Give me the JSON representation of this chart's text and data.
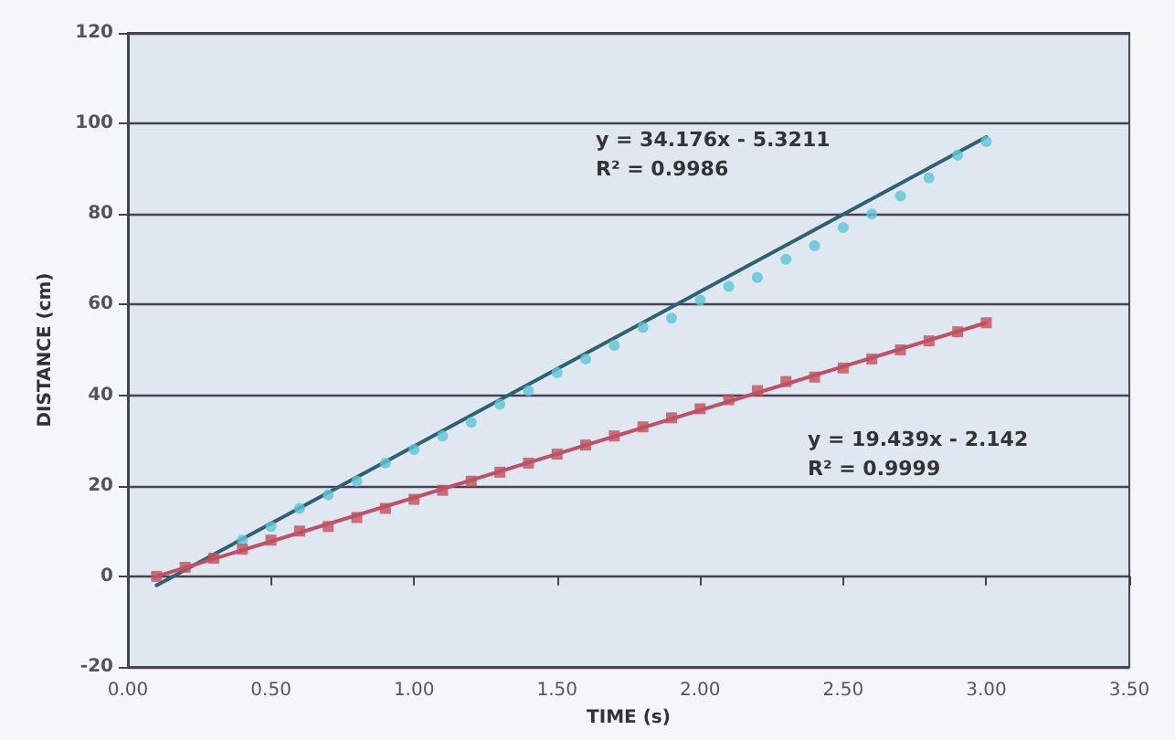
{
  "chart_data": {
    "type": "scatter",
    "xlabel": "TIME (s)",
    "ylabel": "DISTANCE (cm)",
    "xlim": [
      0,
      3.5
    ],
    "xticks": [
      {
        "value": 0,
        "label": "0.00"
      },
      {
        "value": 0.5,
        "label": "0.50"
      },
      {
        "value": 1,
        "label": "1.00"
      },
      {
        "value": 1.5,
        "label": "1.50"
      },
      {
        "value": 2,
        "label": "2.00"
      },
      {
        "value": 2.5,
        "label": "2.50"
      },
      {
        "value": 3,
        "label": "3.00"
      },
      {
        "value": 3.5,
        "label": "3.50"
      }
    ],
    "ylim": [
      -20,
      120
    ],
    "yticks": [
      -20,
      0,
      20,
      40,
      60,
      80,
      100,
      120
    ],
    "grid": "y",
    "x": [
      0.1,
      0.2,
      0.3,
      0.4,
      0.5,
      0.6,
      0.7,
      0.8,
      0.9,
      1.0,
      1.1,
      1.2,
      1.3,
      1.4,
      1.5,
      1.6,
      1.7,
      1.8,
      1.9,
      2.0,
      2.1,
      2.2,
      2.3,
      2.4,
      2.5,
      2.6,
      2.7,
      2.8,
      2.9,
      3.0
    ],
    "series": [
      {
        "marker": "circle",
        "color": "#5cc6d6",
        "values": [
          null,
          null,
          null,
          8,
          11,
          15,
          18,
          21,
          25,
          28,
          31,
          34,
          38,
          41,
          45,
          48,
          51,
          55,
          57,
          61,
          64,
          66,
          70,
          73,
          77,
          80,
          84,
          88,
          93,
          96
        ]
      },
      {
        "marker": "square",
        "color": "#c2505e",
        "values": [
          0,
          2,
          4,
          6,
          8,
          10,
          11,
          13,
          15,
          17,
          19,
          21,
          23,
          25,
          27,
          29,
          31,
          33,
          35,
          37,
          39,
          41,
          43,
          44,
          46,
          48,
          50,
          52,
          54,
          56
        ]
      },
      {
        "type": "line",
        "marker": "none",
        "line_style": "solid",
        "color": "#2f6170",
        "values": [
          -2,
          null,
          null,
          null,
          null,
          null,
          null,
          null,
          null,
          null,
          null,
          null,
          null,
          null,
          null,
          null,
          null,
          null,
          null,
          null,
          null,
          null,
          null,
          null,
          null,
          null,
          null,
          null,
          null,
          97
        ]
      },
      {
        "type": "line",
        "marker": "none",
        "line_style": "solid",
        "color": "#c0506a",
        "values": [
          0,
          null,
          null,
          null,
          null,
          null,
          null,
          null,
          null,
          null,
          null,
          null,
          null,
          null,
          null,
          null,
          null,
          null,
          null,
          null,
          null,
          null,
          null,
          null,
          null,
          null,
          null,
          null,
          null,
          56
        ]
      }
    ],
    "annotations": [
      "y = 34.176x - 5.3211",
      "R² = 0.9986",
      "y = 19.439x - 2.142",
      "R² = 0.9999"
    ]
  }
}
